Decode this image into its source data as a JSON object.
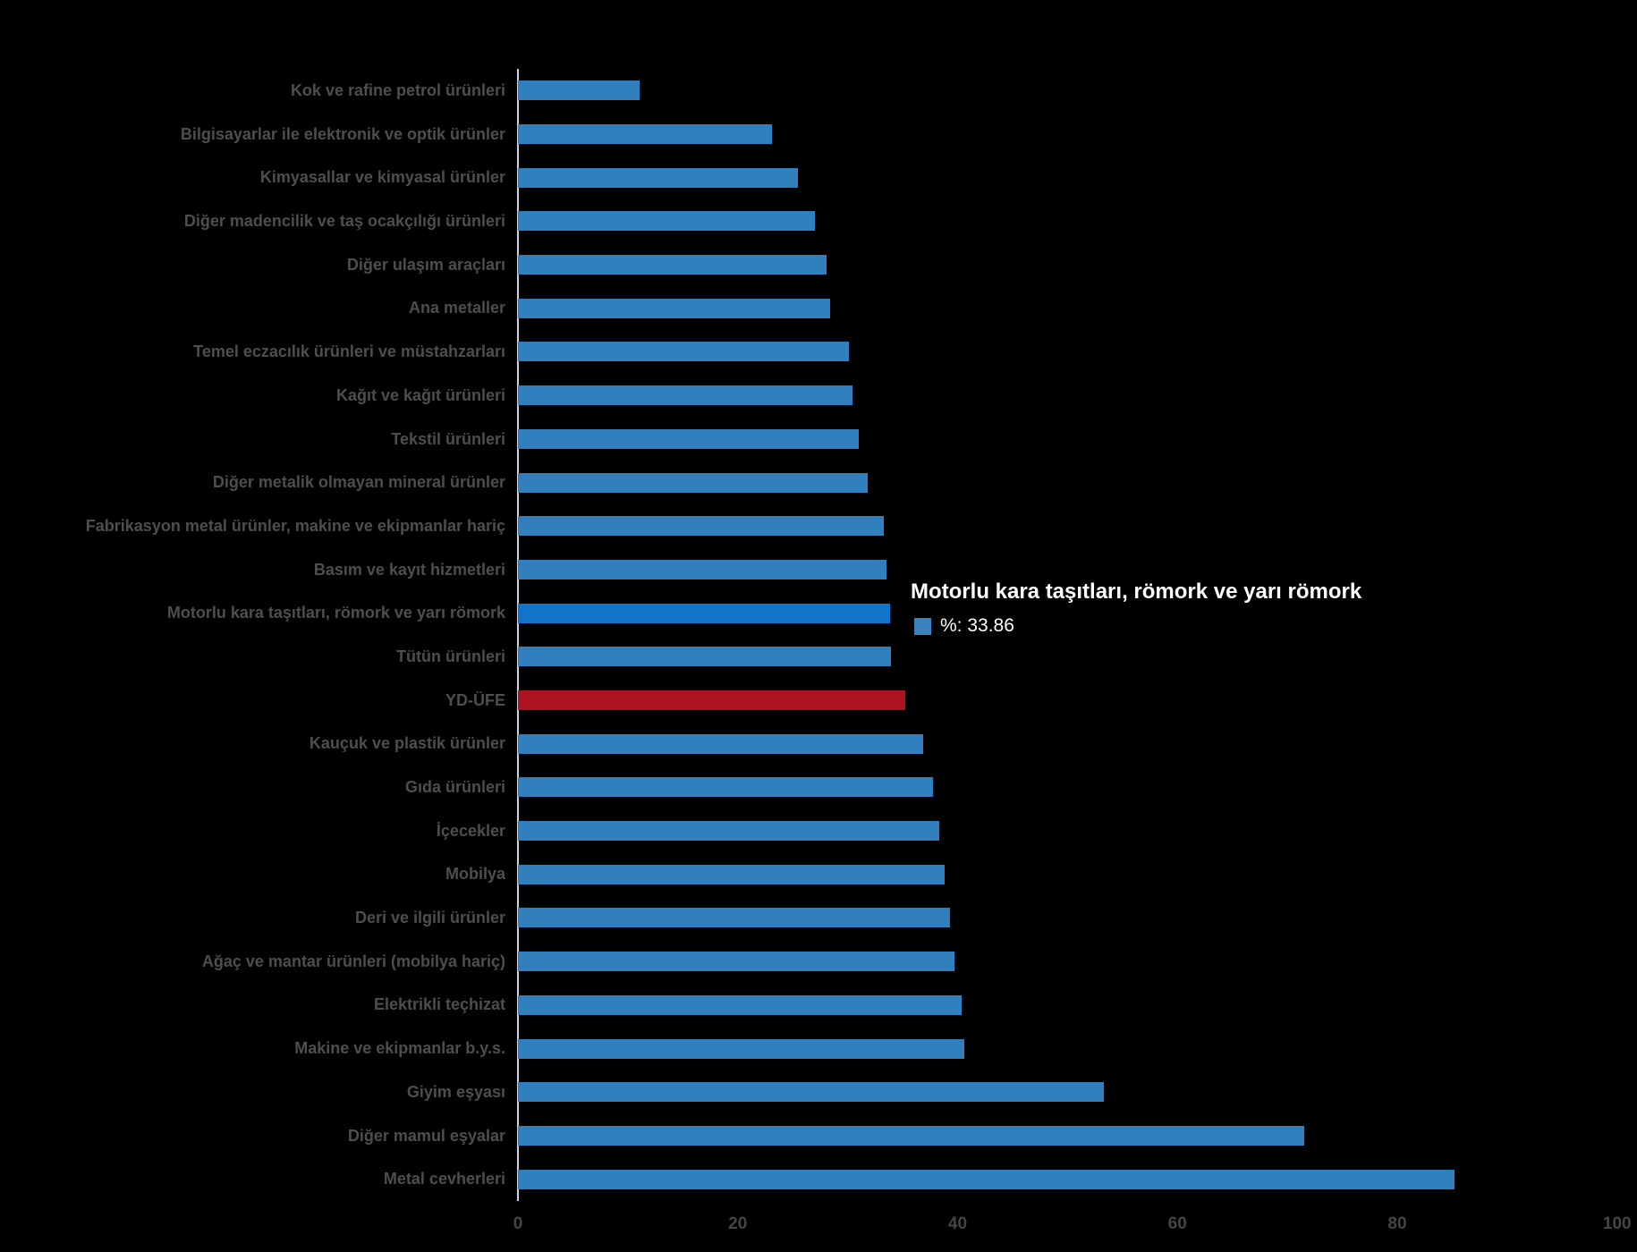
{
  "chart_data": {
    "type": "bar",
    "orientation": "horizontal",
    "title": "",
    "xlabel": "",
    "ylabel": "",
    "xlim": [
      0,
      100
    ],
    "x_ticks": [
      "0",
      "20",
      "40",
      "60",
      "80",
      "100"
    ],
    "grid": false,
    "legend_position": "none",
    "background_color": "#000000",
    "axis_line_color": "#c9d2e0",
    "category_label_color": "#4e4e4e",
    "tick_label_color": "#454545",
    "series_color": "#3180bd",
    "highlight_color": "#1174c8",
    "highlight_index": 12,
    "special_color": "#ad141f",
    "special_index": 14,
    "categories": [
      "Kok ve rafine petrol ürünleri",
      "Bilgisayarlar ile elektronik ve optik ürünler",
      "Kimyasallar ve kimyasal ürünler",
      "Diğer madencilik ve taş ocakçılığı ürünleri",
      "Diğer ulaşım araçları",
      "Ana metaller",
      "Temel eczacılık ürünleri ve müstahzarları",
      "Kağıt ve kağıt ürünleri",
      "Tekstil ürünleri",
      "Diğer metalik olmayan mineral ürünler",
      "Fabrikasyon metal ürünler, makine ve ekipmanlar hariç",
      "Basım ve kayıt hizmetleri",
      "Motorlu kara taşıtları, römork ve yarı römork",
      "Tütün ürünleri",
      "YD-ÜFE",
      "Kauçuk ve plastik ürünler",
      "Gıda ürünleri",
      "İçecekler",
      "Mobilya",
      "Deri ve ilgili ürünler",
      "Ağaç ve mantar ürünleri (mobilya hariç)",
      "Elektrikli teçhizat",
      "Makine ve ekipmanlar b.y.s.",
      "Giyim eşyası",
      "Diğer mamul eşyalar",
      "Metal cevherleri"
    ],
    "values": [
      11.1,
      23.1,
      25.5,
      27,
      28.1,
      28.4,
      30.1,
      30.4,
      31,
      31.8,
      33.3,
      33.5,
      33.86,
      33.9,
      35.2,
      36.9,
      37.8,
      38.3,
      38.8,
      39.3,
      39.7,
      40.4,
      40.6,
      53.3,
      71.5,
      85.2
    ]
  },
  "tooltip": {
    "title": "Motorlu kara taşıtları, römork ve yarı römork",
    "value_label": "%: 33.86",
    "swatch_color": "#3a82be"
  }
}
